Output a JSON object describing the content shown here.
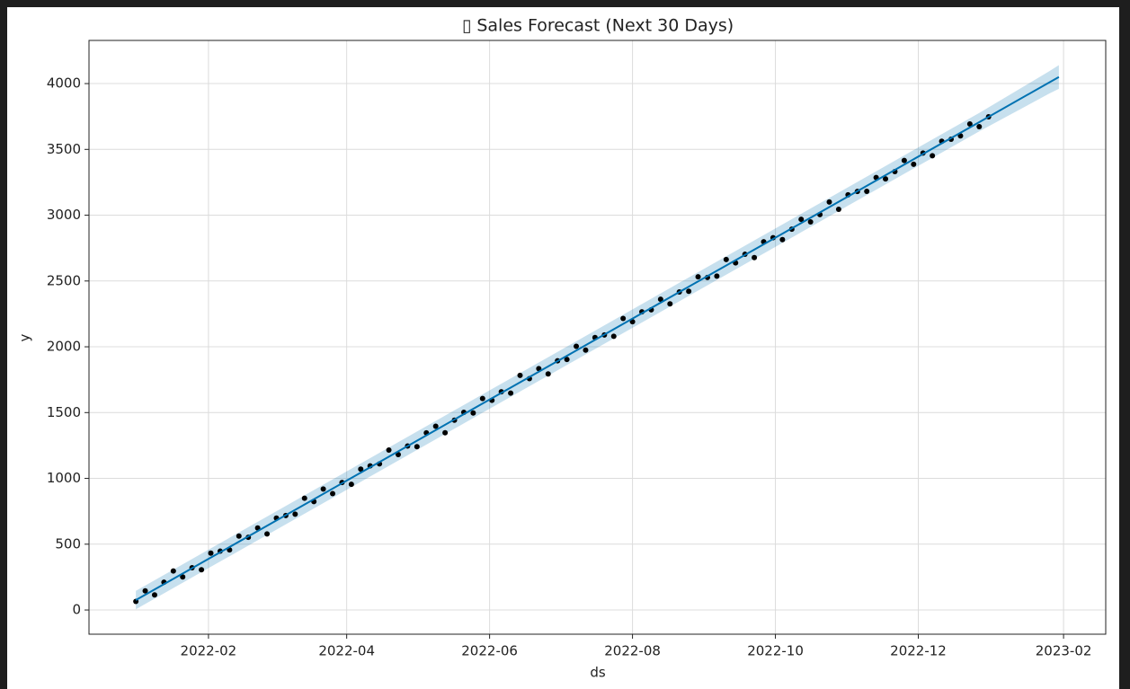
{
  "chart_data": {
    "type": "scatter",
    "title": "▯ Sales Forecast (Next 30 Days)",
    "x_label": "ds",
    "y_label": "y",
    "xlim": [
      -20,
      414
    ],
    "ylim": [
      -184,
      4328
    ],
    "xticks": [
      {
        "value": 31,
        "label": "2022-02"
      },
      {
        "value": 90,
        "label": "2022-04"
      },
      {
        "value": 151,
        "label": "2022-06"
      },
      {
        "value": 212,
        "label": "2022-08"
      },
      {
        "value": 273,
        "label": "2022-10"
      },
      {
        "value": 334,
        "label": "2022-12"
      },
      {
        "value": 396,
        "label": "2023-02"
      }
    ],
    "yticks": [
      0,
      500,
      1000,
      1500,
      2000,
      2500,
      3000,
      3500,
      4000
    ],
    "grid": true,
    "points": {
      "color": "#000000",
      "x": [
        0,
        4,
        8,
        12,
        16,
        20,
        24,
        28,
        32,
        36,
        40,
        44,
        48,
        52,
        56,
        60,
        64,
        68,
        72,
        76,
        80,
        84,
        88,
        92,
        96,
        100,
        104,
        108,
        112,
        116,
        120,
        124,
        128,
        132,
        136,
        140,
        144,
        148,
        152,
        156,
        160,
        164,
        168,
        172,
        176,
        180,
        184,
        188,
        192,
        196,
        200,
        204,
        208,
        212,
        216,
        220,
        224,
        228,
        232,
        236,
        240,
        244,
        248,
        252,
        256,
        260,
        264,
        268,
        272,
        276,
        280,
        284,
        288,
        292,
        296,
        300,
        304,
        308,
        312,
        316,
        320,
        324,
        328,
        332,
        336,
        340,
        344,
        348,
        352,
        356,
        360,
        364
      ],
      "values": [
        65,
        145,
        115,
        211,
        296,
        251,
        321,
        306,
        432,
        447,
        457,
        562,
        552,
        623,
        578,
        698,
        718,
        728,
        849,
        824,
        919,
        884,
        969,
        955,
        1070,
        1095,
        1110,
        1215,
        1181,
        1246,
        1241,
        1346,
        1396,
        1347,
        1442,
        1502,
        1497,
        1607,
        1593,
        1658,
        1648,
        1783,
        1758,
        1834,
        1794,
        1894,
        1904,
        2004,
        1975,
        2070,
        2090,
        2080,
        2215,
        2191,
        2266,
        2281,
        2361,
        2326,
        2417,
        2422,
        2532,
        2527,
        2537,
        2663,
        2638,
        2703,
        2678,
        2798,
        2829,
        2814,
        2894,
        2969,
        2949,
        3005,
        3100,
        3045,
        3155,
        3180,
        3181,
        3286,
        3276,
        3331,
        3416,
        3387,
        3472,
        3452,
        3562,
        3577,
        3603,
        3693,
        3673,
        3748
      ]
    },
    "forecast": {
      "color": "#0072b2",
      "x": [
        0,
        30,
        60,
        90,
        120,
        150,
        180,
        210,
        240,
        270,
        300,
        330,
        360,
        390,
        394
      ],
      "values": [
        75,
        378,
        680,
        983,
        1286,
        1589,
        1891,
        2194,
        2497,
        2799,
        3102,
        3405,
        3707,
        4010,
        4050
      ],
      "lower": [
        5,
        308,
        610,
        913,
        1216,
        1519,
        1821,
        2124,
        2427,
        2729,
        3032,
        3335,
        3637,
        3925,
        3960
      ],
      "upper": [
        145,
        448,
        750,
        1053,
        1356,
        1659,
        1961,
        2264,
        2567,
        2869,
        3172,
        3475,
        3777,
        4095,
        4140
      ]
    }
  }
}
